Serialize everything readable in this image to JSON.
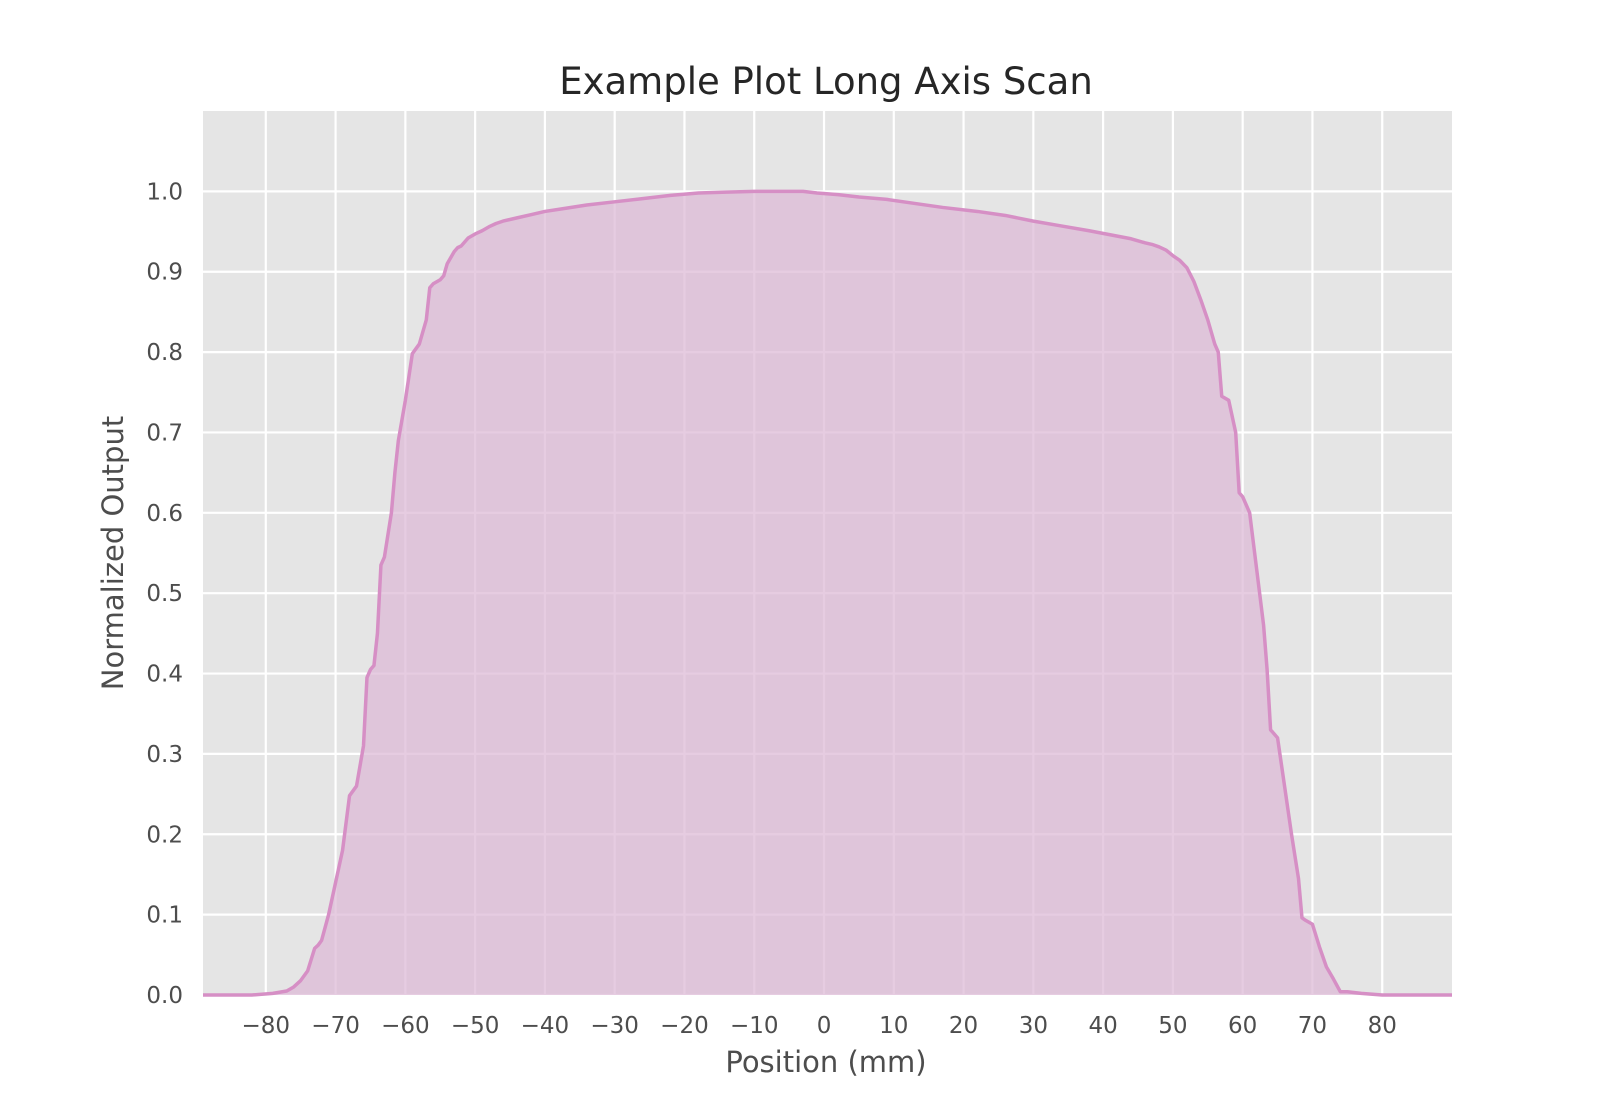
{
  "colors": {
    "background": "#ffffff",
    "plot_background": "#e5e5e5",
    "grid": "#ffffff",
    "line": "#d68fc5",
    "fill": "#dcb8d5"
  },
  "chart_data": {
    "type": "area",
    "title": "Example Plot Long Axis Scan",
    "xlabel": "Position (mm)",
    "ylabel": "Normalized Output",
    "xlim": [
      -89,
      90
    ],
    "ylim": [
      0.0,
      1.1
    ],
    "xticks": [
      -80,
      -70,
      -60,
      -50,
      -40,
      -30,
      -20,
      -10,
      0,
      10,
      20,
      30,
      40,
      50,
      60,
      70,
      80
    ],
    "xtick_labels": [
      "−80",
      "−70",
      "−60",
      "−50",
      "−40",
      "−30",
      "−20",
      "−10",
      "0",
      "10",
      "20",
      "30",
      "40",
      "50",
      "60",
      "70",
      "80"
    ],
    "yticks": [
      0.0,
      0.1,
      0.2,
      0.3,
      0.4,
      0.5,
      0.6,
      0.7,
      0.8,
      0.9,
      1.0
    ],
    "ytick_labels": [
      "0.0",
      "0.1",
      "0.2",
      "0.3",
      "0.4",
      "0.5",
      "0.6",
      "0.7",
      "0.8",
      "0.9",
      "1.0"
    ],
    "grid": true,
    "legend": false,
    "x": [
      -89,
      -86,
      -82,
      -79,
      -77,
      -76,
      -75,
      -74,
      -73,
      -72.5,
      -72,
      -71,
      -70,
      -69,
      -68,
      -67,
      -66,
      -65.5,
      -65,
      -64.5,
      -64,
      -63.5,
      -63,
      -62,
      -61.5,
      -61,
      -60,
      -59,
      -58,
      -57,
      -56.5,
      -56,
      -55,
      -54.5,
      -54,
      -53,
      -52.5,
      -52,
      -51.5,
      -51,
      -50,
      -49,
      -48,
      -47,
      -46,
      -44,
      -42,
      -40,
      -37,
      -34,
      -30,
      -26,
      -22,
      -18,
      -14,
      -10,
      -6,
      -3,
      -1,
      2,
      5,
      9,
      13,
      17,
      22,
      26,
      30,
      34,
      38,
      41,
      44,
      46,
      47,
      48,
      49,
      50,
      51,
      52,
      53,
      54,
      55,
      56,
      56.5,
      57,
      58,
      59,
      59.5,
      60,
      61,
      62,
      63,
      63.5,
      64,
      65,
      66,
      67,
      68,
      68.5,
      69,
      70,
      71,
      72,
      73,
      73.5,
      74,
      75,
      77,
      80,
      84,
      87,
      90
    ],
    "y": [
      0.0,
      0.0,
      0.0,
      0.002,
      0.005,
      0.01,
      0.018,
      0.03,
      0.058,
      0.062,
      0.068,
      0.1,
      0.14,
      0.18,
      0.248,
      0.26,
      0.31,
      0.395,
      0.405,
      0.41,
      0.45,
      0.535,
      0.545,
      0.6,
      0.65,
      0.69,
      0.74,
      0.798,
      0.81,
      0.84,
      0.88,
      0.885,
      0.89,
      0.895,
      0.91,
      0.925,
      0.93,
      0.932,
      0.937,
      0.942,
      0.947,
      0.951,
      0.956,
      0.96,
      0.963,
      0.967,
      0.971,
      0.975,
      0.979,
      0.983,
      0.987,
      0.991,
      0.995,
      0.998,
      0.999,
      1.0,
      1.0,
      1.0,
      0.998,
      0.996,
      0.993,
      0.99,
      0.985,
      0.98,
      0.975,
      0.97,
      0.963,
      0.957,
      0.951,
      0.946,
      0.941,
      0.936,
      0.934,
      0.931,
      0.927,
      0.92,
      0.914,
      0.905,
      0.888,
      0.865,
      0.84,
      0.81,
      0.8,
      0.745,
      0.74,
      0.7,
      0.625,
      0.62,
      0.6,
      0.53,
      0.46,
      0.405,
      0.33,
      0.32,
      0.26,
      0.2,
      0.145,
      0.096,
      0.093,
      0.088,
      0.06,
      0.035,
      0.02,
      0.012,
      0.004,
      0.004,
      0.002,
      0.0,
      0.0,
      0.0,
      0.0
    ]
  }
}
